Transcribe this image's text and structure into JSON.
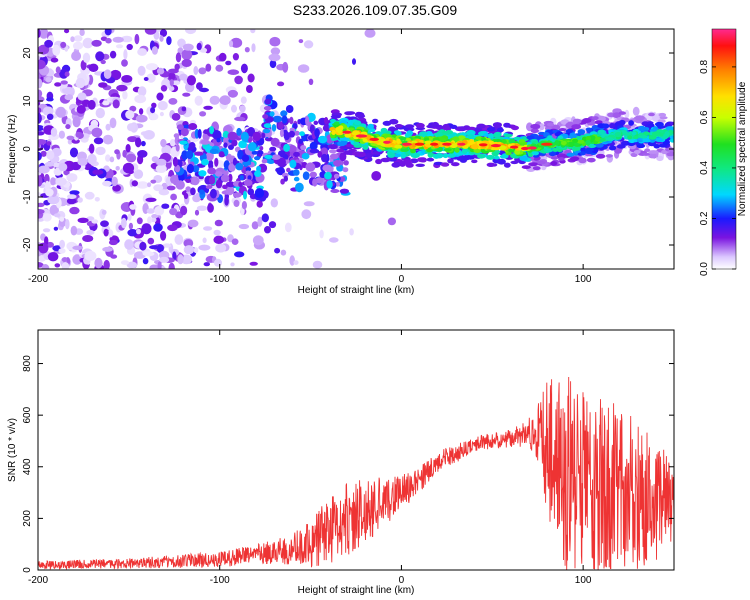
{
  "title": "S233.2026.109.07.35.G09",
  "chart_data": [
    {
      "type": "heatmap",
      "name": "spectrogram",
      "xlabel": "Height of straight line (km)",
      "ylabel": "Frequency (Hz)",
      "xlim": [
        -200,
        150
      ],
      "ylim": [
        -25,
        25
      ],
      "xticks": [
        -200,
        -100,
        0,
        100
      ],
      "yticks": [
        20,
        10,
        0,
        -10,
        -20
      ],
      "colorbar": {
        "label": "Normalized spectral amplitude",
        "range": [
          0,
          0.95
        ],
        "ticks": [
          0.0,
          0.2,
          0.4,
          0.6,
          0.8
        ]
      },
      "ridge": {
        "description": "dominant frequency track (Hz) vs height (km)",
        "x": [
          -35,
          -20,
          -10,
          0,
          20,
          40,
          60,
          70,
          80,
          100,
          120,
          150
        ],
        "y": [
          4,
          2.5,
          1.5,
          1,
          1,
          1,
          0.5,
          0,
          1,
          1.5,
          3,
          3
        ]
      }
    },
    {
      "type": "line",
      "name": "snr",
      "xlabel": "Height of straight line (km)",
      "ylabel": "SNR (10 * v/v)",
      "xlim": [
        -200,
        150
      ],
      "ylim": [
        0,
        930
      ],
      "xticks": [
        -200,
        -100,
        0,
        100
      ],
      "yticks": [
        0,
        200,
        400,
        600,
        800
      ],
      "color": "#ee3333",
      "envelope": {
        "x": [
          -200,
          -150,
          -100,
          -80,
          -60,
          -50,
          -40,
          -30,
          -20,
          -10,
          0,
          10,
          20,
          30,
          40,
          50,
          60,
          70,
          75,
          80,
          85,
          90,
          100,
          110,
          120,
          130,
          140,
          150
        ],
        "mean": [
          20,
          25,
          40,
          60,
          80,
          100,
          150,
          200,
          230,
          270,
          300,
          350,
          420,
          450,
          490,
          500,
          510,
          530,
          520,
          480,
          420,
          380,
          350,
          320,
          300,
          280,
          260,
          240
        ],
        "spread": [
          15,
          20,
          30,
          40,
          60,
          90,
          140,
          150,
          130,
          110,
          70,
          50,
          40,
          35,
          30,
          30,
          35,
          60,
          120,
          250,
          330,
          380,
          380,
          370,
          340,
          300,
          240,
          200
        ]
      }
    }
  ]
}
